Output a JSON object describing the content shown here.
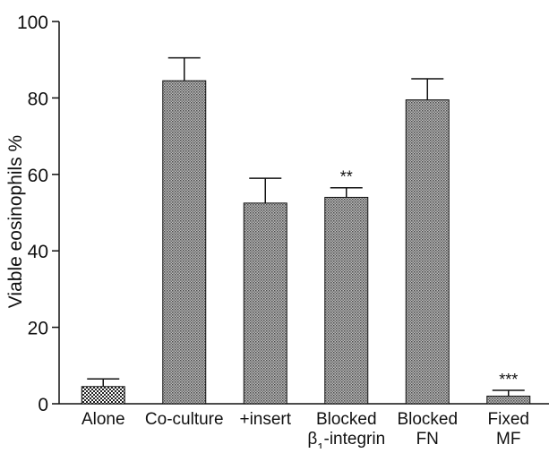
{
  "chart_data": {
    "type": "bar",
    "categories": [
      [
        "Alone"
      ],
      [
        "Co-culture"
      ],
      [
        "+insert"
      ],
      [
        "Blocked",
        "β1-integrin"
      ],
      [
        "Blocked",
        "FN"
      ],
      [
        "Fixed",
        "MF"
      ]
    ],
    "values": [
      4.5,
      84.5,
      52.5,
      54,
      79.5,
      2
    ],
    "errors": [
      2,
      6,
      6.5,
      2.5,
      5.5,
      1.5
    ],
    "annotations": [
      "",
      "",
      "",
      "**",
      "",
      "***"
    ],
    "ylabel": "Viable eosinophils %",
    "xlabel": "",
    "ylim": [
      0,
      100
    ],
    "yticks": [
      0,
      20,
      40,
      60,
      80,
      100
    ],
    "grid": false,
    "bar_pattern": "cross-hatch"
  }
}
